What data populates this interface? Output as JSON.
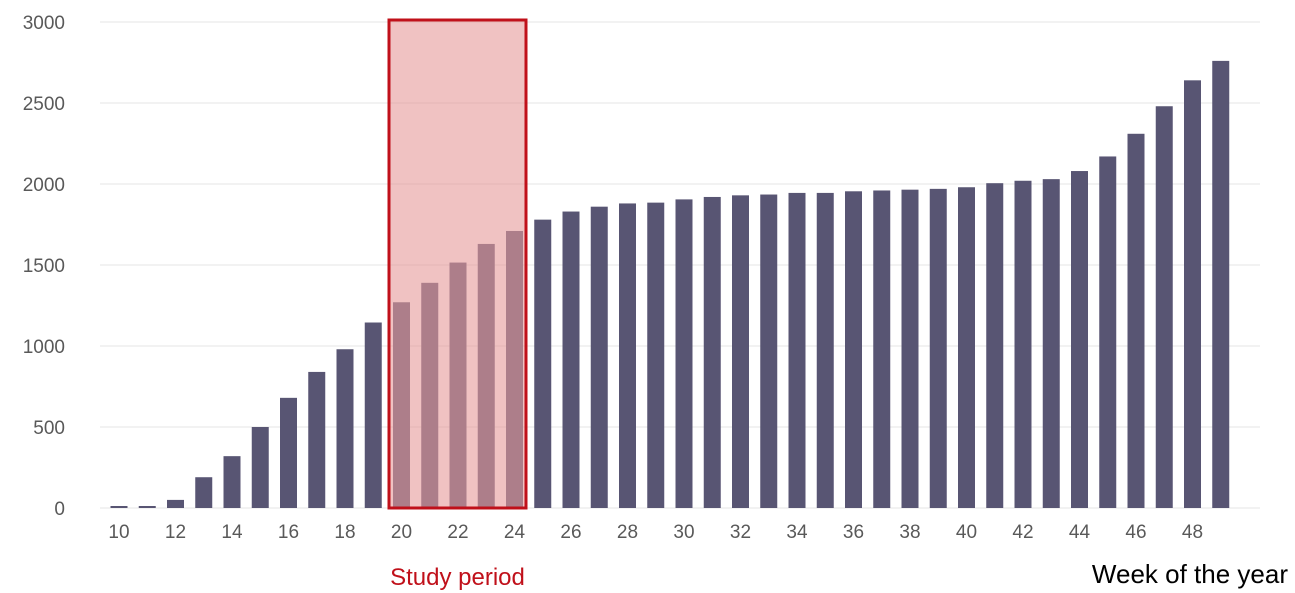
{
  "chart_data": {
    "type": "bar",
    "title": "",
    "xlabel": "Week of the year",
    "ylabel": "",
    "x": [
      10,
      11,
      12,
      13,
      14,
      15,
      16,
      17,
      18,
      19,
      20,
      21,
      22,
      23,
      24,
      25,
      26,
      27,
      28,
      29,
      30,
      31,
      32,
      33,
      34,
      35,
      36,
      37,
      38,
      39,
      40,
      41,
      42,
      43,
      44,
      45,
      46,
      47,
      48,
      49
    ],
    "values": [
      10,
      10,
      50,
      190,
      320,
      500,
      680,
      840,
      980,
      1145,
      1270,
      1390,
      1515,
      1630,
      1710,
      1780,
      1830,
      1860,
      1880,
      1885,
      1905,
      1920,
      1930,
      1935,
      1945,
      1945,
      1955,
      1960,
      1965,
      1970,
      1980,
      2005,
      2020,
      2030,
      2080,
      2170,
      2310,
      2480,
      2640,
      2760
    ],
    "x_tick_labels": [
      "10",
      "12",
      "14",
      "16",
      "18",
      "20",
      "22",
      "24",
      "26",
      "28",
      "30",
      "32",
      "34",
      "36",
      "38",
      "40",
      "42",
      "44",
      "46",
      "48"
    ],
    "y_tick_labels": [
      "0",
      "500",
      "1000",
      "1500",
      "2000",
      "2500",
      "3000"
    ],
    "ylim": [
      0,
      3000
    ],
    "grid": true,
    "legend": "none",
    "colors": {
      "bar": "#585573",
      "highlight_fill": "#e69a9a",
      "highlight_border": "#c0101a",
      "annotation_text": "#c0101a",
      "grid": "#eeeeee",
      "tick_text": "#595959"
    },
    "annotations": [
      {
        "text": "Study period",
        "x_start": 20,
        "x_end": 24,
        "y_top": 3000
      }
    ]
  }
}
